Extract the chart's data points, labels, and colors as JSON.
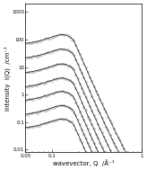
{
  "xlabel": "wavevector, Q  /Å⁻¹",
  "ylabel": "Intensity  I(Q)  /cm⁻¹",
  "background_color": "#ffffff",
  "n_curves": 7,
  "offsets": [
    0.13,
    0.4,
    1.3,
    4.0,
    13.0,
    45.0,
    150.0
  ],
  "peak_q": [
    0.13,
    0.13,
    0.13,
    0.13,
    0.13,
    0.13,
    0.13
  ],
  "curve_color": "#222222",
  "data_color": "#777777",
  "axis_fontsize": 5,
  "tick_fontsize": 4,
  "xlim": [
    0.05,
    1.0
  ],
  "ylim": [
    0.008,
    2000.0
  ]
}
